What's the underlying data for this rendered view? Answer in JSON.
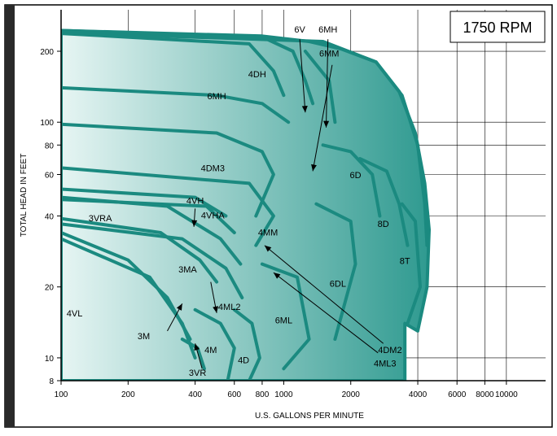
{
  "chart_data": {
    "type": "area",
    "title": "1750 RPM",
    "xlabel": "U.S. GALLONS PER MINUTE",
    "ylabel": "TOTAL HEAD IN FEET",
    "x_scale": "log",
    "y_scale": "log",
    "xlim": [
      100,
      15000
    ],
    "ylim": [
      8,
      300
    ],
    "x_ticks": [
      {
        "value": 100,
        "label": "100"
      },
      {
        "value": 200,
        "label": "200"
      },
      {
        "value": 400,
        "label": "400"
      },
      {
        "value": 600,
        "label": "600"
      },
      {
        "value": 800,
        "label": "800"
      },
      {
        "value": 1000,
        "label": "1000"
      },
      {
        "value": 2000,
        "label": "2000"
      },
      {
        "value": 4000,
        "label": "4000"
      },
      {
        "value": 6000,
        "label": "6000"
      },
      {
        "value": 8000,
        "label": "8000"
      },
      {
        "value": 10000,
        "label": "10000"
      }
    ],
    "y_ticks": [
      {
        "value": 8,
        "label": "8"
      },
      {
        "value": 10,
        "label": "10"
      },
      {
        "value": 20,
        "label": "20"
      },
      {
        "value": 40,
        "label": "40"
      },
      {
        "value": 60,
        "label": "60"
      },
      {
        "value": 80,
        "label": "80"
      },
      {
        "value": 100,
        "label": "100"
      },
      {
        "value": 200,
        "label": "200"
      }
    ],
    "grid": true,
    "accent_color": "#1b8a80",
    "fill_gradient": [
      "#e6f5f3",
      "#2f9a90"
    ],
    "series": [
      {
        "name": "6MM",
        "label_at": [
          1600,
          190
        ],
        "points": [
          [
            100,
            240
          ],
          [
            1500,
            220
          ],
          [
            2600,
            180
          ],
          [
            3400,
            130
          ],
          [
            4000,
            80
          ],
          [
            4300,
            45
          ],
          [
            4400,
            30
          ]
        ]
      },
      {
        "name": "6V",
        "label_at": [
          1180,
          240
        ],
        "points": [
          [
            100,
            245
          ],
          [
            800,
            230
          ],
          [
            1100,
            200
          ],
          [
            1250,
            150
          ],
          [
            1350,
            120
          ]
        ]
      },
      {
        "name": "6MH",
        "label_at": [
          1580,
          240
        ],
        "points": [
          [
            1250,
            200
          ],
          [
            1600,
            150
          ],
          [
            1700,
            100
          ]
        ]
      },
      {
        "name": "4DH",
        "label_at": [
          760,
          155
        ],
        "points": [
          [
            100,
            238
          ],
          [
            700,
            215
          ],
          [
            900,
            165
          ],
          [
            1000,
            130
          ]
        ]
      },
      {
        "name": "6MH",
        "label_at": [
          500,
          125
        ],
        "points": [
          [
            100,
            140
          ],
          [
            500,
            130
          ],
          [
            800,
            120
          ],
          [
            1050,
            100
          ]
        ]
      },
      {
        "name": "4DM3",
        "label_at": [
          480,
          62
        ],
        "points": [
          [
            100,
            98
          ],
          [
            500,
            90
          ],
          [
            800,
            75
          ],
          [
            900,
            60
          ],
          [
            750,
            40
          ]
        ]
      },
      {
        "name": "6D",
        "label_at": [
          2100,
          58
        ],
        "points": [
          [
            1500,
            80
          ],
          [
            2000,
            75
          ],
          [
            2500,
            60
          ],
          [
            2700,
            40
          ]
        ]
      },
      {
        "name": "8D",
        "label_at": [
          2800,
          36
        ],
        "points": [
          [
            2200,
            70
          ],
          [
            2900,
            62
          ],
          [
            3300,
            45
          ],
          [
            3600,
            30
          ]
        ]
      },
      {
        "name": "8T",
        "label_at": [
          3500,
          25
        ],
        "points": [
          [
            3400,
            45
          ],
          [
            3900,
            38
          ],
          [
            4100,
            20
          ],
          [
            3600,
            14
          ]
        ]
      },
      {
        "name": "4MM",
        "label_at": [
          850,
          33
        ],
        "points": [
          [
            100,
            64
          ],
          [
            700,
            55
          ],
          [
            900,
            40
          ],
          [
            750,
            30
          ]
        ]
      },
      {
        "name": "6DL",
        "label_at": [
          1750,
          20
        ],
        "points": [
          [
            1400,
            45
          ],
          [
            2000,
            38
          ],
          [
            2100,
            25
          ],
          [
            1700,
            12
          ]
        ]
      },
      {
        "name": "6ML",
        "label_at": [
          1000,
          14
        ],
        "points": [
          [
            800,
            25
          ],
          [
            1150,
            22
          ],
          [
            1300,
            12
          ],
          [
            1000,
            9
          ]
        ]
      },
      {
        "name": "4VH",
        "label_at": [
          400,
          45
        ],
        "points": [
          [
            100,
            52
          ],
          [
            400,
            48
          ],
          [
            550,
            40
          ]
        ]
      },
      {
        "name": "4VHA",
        "label_at": [
          480,
          39
        ],
        "points": [
          [
            100,
            47
          ],
          [
            450,
            44
          ],
          [
            600,
            34
          ]
        ]
      },
      {
        "name": "3VRA",
        "label_at": [
          150,
          38
        ],
        "points": [
          [
            100,
            48
          ],
          [
            300,
            44
          ],
          [
            520,
            32
          ],
          [
            640,
            25
          ]
        ]
      },
      {
        "name": "3MA",
        "label_at": [
          370,
          23
        ],
        "points": [
          [
            100,
            39
          ],
          [
            280,
            34
          ],
          [
            420,
            26
          ],
          [
            500,
            21
          ]
        ]
      },
      {
        "name": "4ML2",
        "label_at": [
          570,
          16
        ],
        "points": [
          [
            100,
            37
          ],
          [
            350,
            32
          ],
          [
            550,
            24
          ],
          [
            650,
            18
          ]
        ]
      },
      {
        "name": "4VL",
        "label_at": [
          115,
          15
        ],
        "points": [
          [
            100,
            34
          ],
          [
            200,
            26
          ],
          [
            300,
            18
          ],
          [
            380,
            12
          ]
        ]
      },
      {
        "name": "3M",
        "label_at": [
          235,
          12
        ],
        "points": [
          [
            100,
            32
          ],
          [
            250,
            22
          ],
          [
            350,
            14
          ],
          [
            400,
            10
          ]
        ]
      },
      {
        "name": "4M",
        "label_at": [
          470,
          10.5
        ],
        "points": [
          [
            400,
            16
          ],
          [
            520,
            14
          ],
          [
            600,
            11
          ],
          [
            560,
            8
          ]
        ]
      },
      {
        "name": "4D",
        "label_at": [
          660,
          9.5
        ],
        "points": [
          [
            600,
            16
          ],
          [
            720,
            14
          ],
          [
            780,
            10
          ],
          [
            700,
            8
          ]
        ]
      },
      {
        "name": "3VR",
        "label_at": [
          410,
          8.4
        ],
        "points": [
          [
            350,
            12
          ],
          [
            410,
            11
          ],
          [
            440,
            9
          ]
        ]
      },
      {
        "name": "4DM2",
        "label_at": [
          3000,
          10.5
        ],
        "points": []
      },
      {
        "name": "4ML3",
        "label_at": [
          2850,
          9.2
        ],
        "points": []
      }
    ]
  }
}
